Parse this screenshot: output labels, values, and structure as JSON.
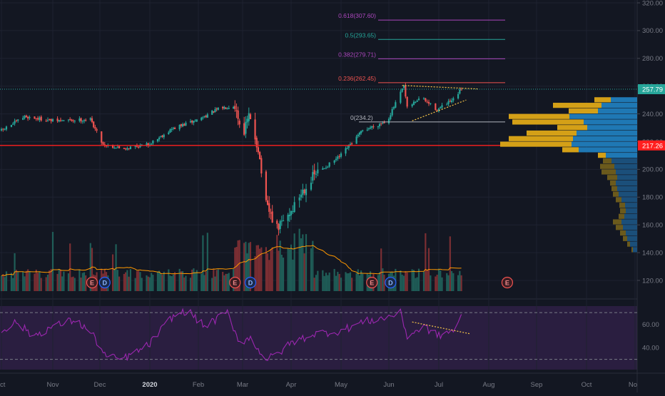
{
  "chart_data": {
    "type": "candlestick",
    "instrument_hint": "",
    "x_labels": [
      "ct",
      "Nov",
      "Dec",
      "2020",
      "Feb",
      "Mar",
      "Apr",
      "May",
      "Jun",
      "Jul",
      "Aug",
      "Sep",
      "Oct",
      "No"
    ],
    "y_ticks": [
      "320.00",
      "300.00",
      "280.00",
      "260.00",
      "240.00",
      "220.00",
      "200.00",
      "180.00",
      "160.00",
      "140.00",
      "120.00"
    ],
    "ylim": [
      112,
      324
    ],
    "last_price_label": "257.79",
    "last_price": 257.79,
    "horizontal_line_label": "217.26",
    "horizontal_line_price": 217.26,
    "fibonacci_levels": [
      {
        "label": "0.618(307.60)",
        "price": 307.6,
        "color": "#ab47bc"
      },
      {
        "label": "0.5(293.65)",
        "price": 293.65,
        "color": "#26a69a"
      },
      {
        "label": "0.382(279.71)",
        "price": 279.71,
        "color": "#ab47bc"
      },
      {
        "label": "0.236(262.45)",
        "price": 262.45,
        "color": "#ef5350"
      },
      {
        "label": "0(234.2)",
        "price": 234.2,
        "color": "#b2b5be"
      }
    ],
    "price_anchors": [
      [
        "2019-10-01",
        228
      ],
      [
        "2019-10-15",
        238
      ],
      [
        "2019-11-01",
        235
      ],
      [
        "2019-11-25",
        236
      ],
      [
        "2019-12-03",
        218
      ],
      [
        "2019-12-15",
        215
      ],
      [
        "2019-12-31",
        218
      ],
      [
        "2020-01-15",
        229
      ],
      [
        "2020-02-01",
        236
      ],
      [
        "2020-02-15",
        244
      ],
      [
        "2020-02-25",
        246
      ],
      [
        "2020-03-01",
        225
      ],
      [
        "2020-03-05",
        238
      ],
      [
        "2020-03-11",
        215
      ],
      [
        "2020-03-16",
        174
      ],
      [
        "2020-03-23",
        157
      ],
      [
        "2020-04-01",
        170
      ],
      [
        "2020-04-08",
        185
      ],
      [
        "2020-04-15",
        196
      ],
      [
        "2020-04-30",
        209
      ],
      [
        "2020-05-15",
        228
      ],
      [
        "2020-05-31",
        235
      ],
      [
        "2020-06-10",
        260
      ],
      [
        "2020-06-12",
        244
      ],
      [
        "2020-06-20",
        252
      ],
      [
        "2020-06-30",
        243
      ],
      [
        "2020-07-10",
        250
      ],
      [
        "2020-07-15",
        258
      ]
    ],
    "volume_profile": [
      {
        "price": 250,
        "total": 60,
        "up": 37
      },
      {
        "price": 246,
        "total": 118,
        "up": 50
      },
      {
        "price": 242,
        "total": 96,
        "up": 55
      },
      {
        "price": 238,
        "total": 180,
        "up": 95
      },
      {
        "price": 234,
        "total": 175,
        "up": 75
      },
      {
        "price": 230,
        "total": 112,
        "up": 70
      },
      {
        "price": 226,
        "total": 155,
        "up": 85
      },
      {
        "price": 222,
        "total": 180,
        "up": 90
      },
      {
        "price": 218,
        "total": 192,
        "up": 92
      },
      {
        "price": 214,
        "total": 105,
        "up": 82
      },
      {
        "price": 210,
        "total": 55,
        "up": 44
      },
      {
        "price": 206,
        "total": 48,
        "up": 36
      },
      {
        "price": 202,
        "total": 52,
        "up": 32
      },
      {
        "price": 198,
        "total": 50,
        "up": 30
      },
      {
        "price": 194,
        "total": 42,
        "up": 28
      },
      {
        "price": 190,
        "total": 38,
        "up": 30
      },
      {
        "price": 186,
        "total": 36,
        "up": 28
      },
      {
        "price": 182,
        "total": 34,
        "up": 26
      },
      {
        "price": 178,
        "total": 30,
        "up": 22
      },
      {
        "price": 174,
        "total": 25,
        "up": 17
      },
      {
        "price": 170,
        "total": 24,
        "up": 16
      },
      {
        "price": 166,
        "total": 26,
        "up": 18
      },
      {
        "price": 162,
        "total": 34,
        "up": 22
      },
      {
        "price": 158,
        "total": 30,
        "up": 20
      },
      {
        "price": 154,
        "total": 24,
        "up": 16
      },
      {
        "price": 150,
        "total": 20,
        "up": 14
      },
      {
        "price": 146,
        "total": 14,
        "up": 10
      },
      {
        "price": 142,
        "total": 8,
        "up": 6
      }
    ],
    "events": [
      {
        "letter": "E",
        "date": "2019-11-26"
      },
      {
        "letter": "D",
        "date": "2019-12-04"
      },
      {
        "letter": "E",
        "date": "2020-02-25"
      },
      {
        "letter": "D",
        "date": "2020-03-06"
      },
      {
        "letter": "E",
        "date": "2020-05-21"
      },
      {
        "letter": "D",
        "date": "2020-06-02"
      },
      {
        "letter": "E",
        "date": "2020-08-13"
      }
    ],
    "rsi": {
      "ticks": [
        "60.00",
        "40.00"
      ],
      "ylim": [
        25,
        75
      ],
      "upper_band": 70,
      "lower_band": 30,
      "anchors": [
        [
          "2019-10-01",
          55
        ],
        [
          "2019-10-10",
          62
        ],
        [
          "2019-10-20",
          50
        ],
        [
          "2019-11-01",
          58
        ],
        [
          "2019-11-15",
          64
        ],
        [
          "2019-11-26",
          52
        ],
        [
          "2019-12-05",
          32
        ],
        [
          "2019-12-15",
          30
        ],
        [
          "2019-12-31",
          42
        ],
        [
          "2020-01-15",
          66
        ],
        [
          "2020-01-25",
          72
        ],
        [
          "2020-02-05",
          58
        ],
        [
          "2020-02-20",
          70
        ],
        [
          "2020-02-28",
          45
        ],
        [
          "2020-03-06",
          48
        ],
        [
          "2020-03-16",
          30
        ],
        [
          "2020-03-23",
          34
        ],
        [
          "2020-04-01",
          44
        ],
        [
          "2020-04-15",
          52
        ],
        [
          "2020-04-30",
          54
        ],
        [
          "2020-05-15",
          62
        ],
        [
          "2020-05-31",
          66
        ],
        [
          "2020-06-08",
          70
        ],
        [
          "2020-06-12",
          50
        ],
        [
          "2020-06-22",
          58
        ],
        [
          "2020-07-01",
          50
        ],
        [
          "2020-07-10",
          55
        ],
        [
          "2020-07-15",
          66
        ]
      ]
    },
    "grid": true,
    "colors": {
      "up": "#26a69a",
      "down": "#ef5350",
      "background": "#131722",
      "grid": "#1e2230",
      "rsi_fill": "#2a1e40",
      "rsi_line": "#9c27b0",
      "volume_ma": "#ff9800",
      "trendline": "#f7c548",
      "vp_up": "#1f78b4",
      "vp_down": "#d4a017",
      "axis_text": "#787b86"
    }
  }
}
